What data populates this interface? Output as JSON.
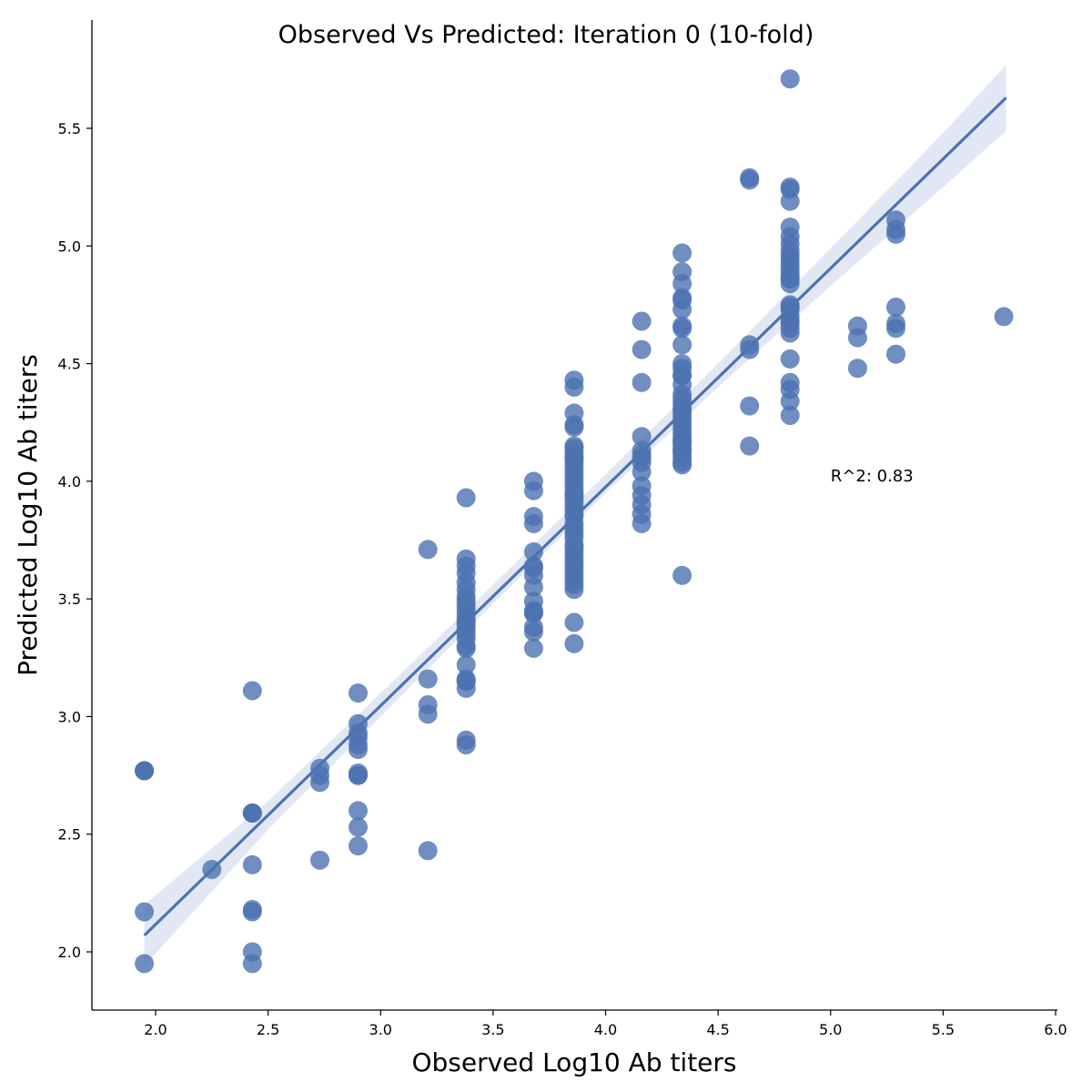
{
  "chart_data": {
    "type": "scatter",
    "title": "Observed Vs Predicted: Iteration 0 (10-fold)",
    "xlabel": "Observed Log10 Ab titers",
    "ylabel": "Predicted Log10 Ab titers",
    "xlim": [
      1.72,
      6.0
    ],
    "ylim": [
      1.74,
      5.82
    ],
    "xticks": [
      "2.0",
      "2.5",
      "3.0",
      "3.5",
      "4.0",
      "4.5",
      "5.0",
      "5.5",
      "6.0"
    ],
    "yticks": [
      "2.0",
      "2.5",
      "3.0",
      "3.5",
      "4.0",
      "4.5",
      "5.0",
      "5.5"
    ],
    "grid": false,
    "annotation": {
      "text": "R^2: 0.83",
      "x": 5.0,
      "y": 4.0
    },
    "marker_color": "#4c72b0",
    "line_color": "#4c72b0",
    "band_color": "#c9d6ea",
    "regression": {
      "x": [
        1.95,
        5.78
      ],
      "y": [
        2.07,
        5.63
      ]
    },
    "confidence_band": {
      "x": [
        1.95,
        2.5,
        3.0,
        3.5,
        4.0,
        4.5,
        5.0,
        5.5,
        5.78
      ],
      "upper": [
        2.2,
        2.64,
        3.1,
        3.56,
        4.03,
        4.5,
        4.99,
        5.48,
        5.77
      ],
      "lower": [
        1.94,
        2.52,
        3.0,
        3.48,
        3.95,
        4.4,
        4.83,
        5.25,
        5.49
      ]
    },
    "points": {
      "x": [
        1.95,
        1.95,
        1.95,
        1.95,
        1.95,
        2.25,
        2.43,
        2.43,
        2.43,
        2.43,
        2.43,
        2.43,
        2.43,
        2.43,
        2.43,
        2.73,
        2.73,
        2.73,
        2.73,
        2.9,
        2.9,
        2.9,
        2.9,
        2.9,
        2.9,
        2.9,
        2.9,
        2.9,
        2.9,
        2.9,
        2.9,
        3.21,
        3.21,
        3.21,
        3.21,
        3.21,
        3.38,
        3.38,
        3.38,
        3.38,
        3.38,
        3.38,
        3.38,
        3.38,
        3.38,
        3.38,
        3.38,
        3.38,
        3.38,
        3.38,
        3.38,
        3.38,
        3.38,
        3.38,
        3.38,
        3.38,
        3.38,
        3.38,
        3.38,
        3.38,
        3.38,
        3.38,
        3.68,
        3.68,
        3.68,
        3.68,
        3.68,
        3.68,
        3.68,
        3.68,
        3.68,
        3.68,
        3.68,
        3.68,
        3.68,
        3.68,
        3.68,
        3.68,
        3.86,
        3.86,
        3.86,
        3.86,
        3.86,
        3.86,
        3.86,
        3.86,
        3.86,
        3.86,
        3.86,
        3.86,
        3.86,
        3.86,
        3.86,
        3.86,
        3.86,
        3.86,
        3.86,
        3.86,
        3.86,
        3.86,
        3.86,
        3.86,
        3.86,
        3.86,
        3.86,
        3.86,
        3.86,
        3.86,
        3.86,
        3.86,
        3.86,
        3.86,
        3.86,
        3.86,
        3.86,
        3.86,
        3.86,
        3.86,
        3.86,
        4.16,
        4.16,
        4.16,
        4.16,
        4.16,
        4.16,
        4.16,
        4.16,
        4.16,
        4.16,
        4.16,
        4.16,
        4.16,
        4.16,
        4.34,
        4.34,
        4.34,
        4.34,
        4.34,
        4.34,
        4.34,
        4.34,
        4.34,
        4.34,
        4.34,
        4.34,
        4.34,
        4.34,
        4.34,
        4.34,
        4.34,
        4.34,
        4.34,
        4.34,
        4.34,
        4.34,
        4.34,
        4.34,
        4.34,
        4.34,
        4.34,
        4.34,
        4.34,
        4.34,
        4.34,
        4.34,
        4.34,
        4.34,
        4.64,
        4.64,
        4.64,
        4.64,
        4.64,
        4.64,
        4.82,
        4.82,
        4.82,
        4.82,
        4.82,
        4.82,
        4.82,
        4.82,
        4.82,
        4.82,
        4.82,
        4.82,
        4.82,
        4.82,
        4.82,
        4.82,
        4.82,
        4.82,
        4.82,
        4.82,
        4.82,
        4.82,
        4.82,
        4.82,
        4.82,
        4.82,
        4.82,
        4.82,
        4.82,
        5.12,
        5.12,
        5.12,
        5.29,
        5.29,
        5.29,
        5.29,
        5.29,
        5.29,
        5.29,
        5.77
      ],
      "y": [
        2.77,
        2.77,
        2.77,
        2.17,
        1.95,
        2.35,
        3.11,
        2.59,
        2.59,
        2.59,
        2.37,
        2.18,
        2.17,
        2.0,
        1.95,
        2.78,
        2.75,
        2.72,
        2.39,
        3.1,
        2.97,
        2.93,
        2.91,
        2.88,
        2.86,
        2.76,
        2.75,
        2.75,
        2.6,
        2.53,
        2.45,
        3.71,
        3.16,
        3.05,
        3.01,
        2.43,
        3.93,
        3.67,
        3.64,
        3.61,
        3.57,
        3.54,
        3.51,
        3.49,
        3.47,
        3.45,
        3.43,
        3.41,
        3.39,
        3.37,
        3.35,
        3.33,
        3.3,
        3.29,
        3.22,
        3.16,
        3.15,
        3.15,
        3.12,
        2.9,
        2.88,
        3.4,
        4.0,
        3.96,
        3.85,
        3.82,
        3.7,
        3.64,
        3.63,
        3.6,
        3.55,
        3.49,
        3.45,
        3.44,
        3.44,
        3.38,
        3.29,
        3.36,
        4.43,
        4.4,
        4.29,
        4.24,
        4.23,
        4.15,
        4.14,
        4.12,
        4.1,
        4.08,
        4.06,
        4.04,
        4.02,
        4.0,
        3.98,
        3.96,
        3.94,
        3.92,
        3.9,
        3.88,
        3.85,
        3.82,
        3.8,
        3.78,
        3.76,
        3.73,
        3.7,
        3.68,
        3.66,
        3.64,
        3.62,
        3.6,
        3.58,
        3.56,
        3.54,
        3.4,
        3.31,
        3.72,
        3.86,
        3.94,
        4.1,
        4.68,
        4.56,
        4.42,
        4.19,
        4.13,
        4.11,
        4.1,
        4.08,
        4.04,
        3.98,
        3.94,
        3.9,
        3.86,
        3.82,
        4.97,
        4.89,
        4.84,
        4.78,
        4.77,
        4.73,
        4.66,
        4.65,
        4.58,
        4.5,
        4.48,
        4.45,
        4.41,
        4.37,
        4.35,
        4.33,
        4.31,
        4.28,
        4.26,
        4.24,
        4.22,
        4.2,
        4.18,
        4.16,
        4.14,
        4.12,
        4.1,
        4.08,
        4.07,
        3.6,
        4.3,
        4.17,
        4.13,
        4.45,
        5.29,
        5.28,
        4.58,
        4.56,
        4.32,
        4.15,
        5.71,
        5.25,
        5.24,
        5.19,
        5.08,
        5.04,
        5.01,
        4.98,
        4.94,
        4.9,
        4.88,
        4.86,
        4.84,
        4.75,
        4.74,
        4.7,
        4.67,
        4.65,
        4.63,
        4.52,
        4.42,
        4.39,
        4.34,
        4.28,
        4.96,
        4.92,
        4.86,
        4.73,
        4.68,
        4.66,
        4.61,
        4.48,
        5.11,
        5.07,
        5.05,
        4.74,
        4.67,
        4.65,
        4.54,
        4.7
      ]
    }
  }
}
